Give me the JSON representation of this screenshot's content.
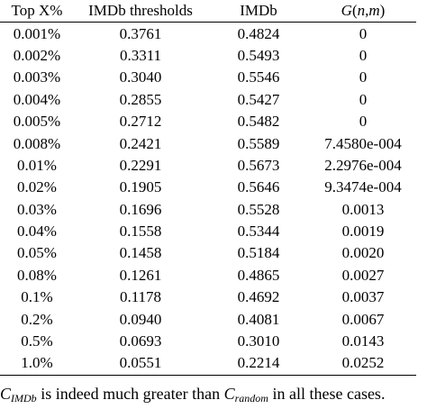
{
  "table": {
    "headers": [
      "Top X%",
      "IMDb thresholds",
      "IMDb"
    ],
    "g_header": {
      "func": "G",
      "open": "(",
      "arg1": "n",
      "sep": ",",
      "arg2": "m",
      "close": ")"
    },
    "rows": [
      [
        "0.001%",
        "0.3761",
        "0.4824",
        "0"
      ],
      [
        "0.002%",
        "0.3311",
        "0.5493",
        "0"
      ],
      [
        "0.003%",
        "0.3040",
        "0.5546",
        "0"
      ],
      [
        "0.004%",
        "0.2855",
        "0.5427",
        "0"
      ],
      [
        "0.005%",
        "0.2712",
        "0.5482",
        "0"
      ],
      [
        "0.008%",
        "0.2421",
        "0.5589",
        "7.4580e-004"
      ],
      [
        "0.01%",
        "0.2291",
        "0.5673",
        "2.2976e-004"
      ],
      [
        "0.02%",
        "0.1905",
        "0.5646",
        "9.3474e-004"
      ],
      [
        "0.03%",
        "0.1696",
        "0.5528",
        "0.0013"
      ],
      [
        "0.04%",
        "0.1558",
        "0.5344",
        "0.0019"
      ],
      [
        "0.05%",
        "0.1458",
        "0.5184",
        "0.0020"
      ],
      [
        "0.08%",
        "0.1261",
        "0.4865",
        "0.0027"
      ],
      [
        "0.1%",
        "0.1178",
        "0.4692",
        "0.0037"
      ],
      [
        "0.2%",
        "0.0940",
        "0.4081",
        "0.0067"
      ],
      [
        "0.5%",
        "0.0693",
        "0.3010",
        "0.0143"
      ],
      [
        "1.0%",
        "0.0551",
        "0.2214",
        "0.0252"
      ]
    ]
  },
  "caption": {
    "var1": "C",
    "sub1": "IMDb",
    "middle": " is indeed much greater than ",
    "var2": "C",
    "sub2": "random",
    "end": " in all these cases."
  }
}
